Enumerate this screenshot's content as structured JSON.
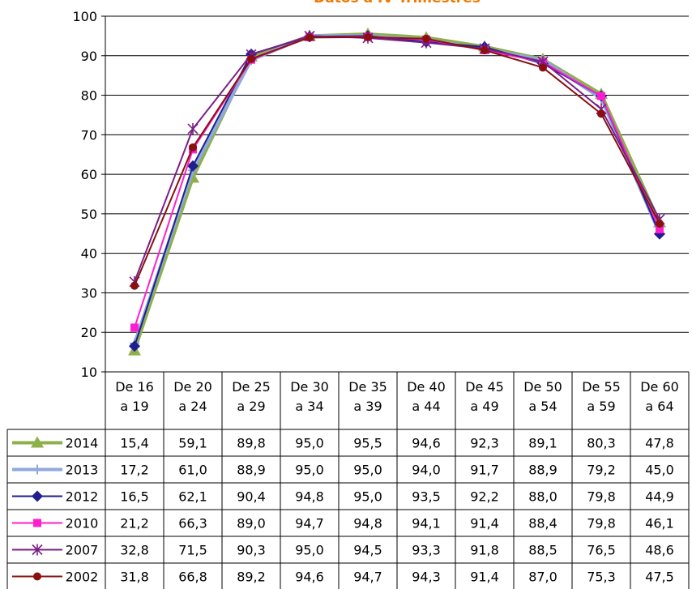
{
  "chart_data": {
    "type": "line",
    "title": "Datos a IV Trimestres",
    "ylim": [
      10,
      100
    ],
    "yticks": [
      "10",
      "20",
      "30",
      "40",
      "50",
      "60",
      "70",
      "80",
      "90",
      "100"
    ],
    "categories": [
      [
        "De 16",
        "a 19"
      ],
      [
        "De 20",
        "a 24"
      ],
      [
        "De 25",
        "a 29"
      ],
      [
        "De 30",
        "a 34"
      ],
      [
        "De 35",
        "a 39"
      ],
      [
        "De 40",
        "a 44"
      ],
      [
        "De 45",
        "a 49"
      ],
      [
        "De 50",
        "a 54"
      ],
      [
        "De 55",
        "a 59"
      ],
      [
        "De 60",
        "a 64"
      ]
    ],
    "grid": true,
    "legend": "data table",
    "series": [
      {
        "name": "2014",
        "color": "#8db04a",
        "marker": "triangle",
        "values": [
          15.4,
          59.1,
          89.8,
          95.0,
          95.5,
          94.6,
          92.3,
          89.1,
          80.3,
          47.8
        ],
        "labels": [
          "15,4",
          "59,1",
          "89,8",
          "95,0",
          "95,5",
          "94,6",
          "92,3",
          "89,1",
          "80,3",
          "47,8"
        ]
      },
      {
        "name": "2013",
        "color": "#8ea9db",
        "marker": "plus",
        "values": [
          17.2,
          61.0,
          88.9,
          95.0,
          95.0,
          94.0,
          91.7,
          88.9,
          79.2,
          45.0
        ],
        "labels": [
          "17,2",
          "61,0",
          "88,9",
          "95,0",
          "95,0",
          "94,0",
          "91,7",
          "88,9",
          "79,2",
          "45,0"
        ]
      },
      {
        "name": "2012",
        "color": "#1f1f8f",
        "marker": "diamond",
        "values": [
          16.5,
          62.1,
          90.4,
          94.8,
          95.0,
          93.5,
          92.2,
          88.0,
          79.8,
          44.9
        ],
        "labels": [
          "16,5",
          "62,1",
          "90,4",
          "94,8",
          "95,0",
          "93,5",
          "92,2",
          "88,0",
          "79,8",
          "44,9"
        ]
      },
      {
        "name": "2010",
        "color": "#ff1ecf",
        "marker": "square",
        "values": [
          21.2,
          66.3,
          89.0,
          94.7,
          94.8,
          94.1,
          91.4,
          88.4,
          79.8,
          46.1
        ],
        "labels": [
          "21,2",
          "66,3",
          "89,0",
          "94,7",
          "94,8",
          "94,1",
          "91,4",
          "88,4",
          "79,8",
          "46,1"
        ]
      },
      {
        "name": "2007",
        "color": "#7a1f85",
        "marker": "star",
        "values": [
          32.8,
          71.5,
          90.3,
          95.0,
          94.5,
          93.3,
          91.8,
          88.5,
          76.5,
          48.6
        ],
        "labels": [
          "32,8",
          "71,5",
          "90,3",
          "95,0",
          "94,5",
          "93,3",
          "91,8",
          "88,5",
          "76,5",
          "48,6"
        ]
      },
      {
        "name": "2002",
        "color": "#8a1010",
        "marker": "circle",
        "values": [
          31.8,
          66.8,
          89.2,
          94.6,
          94.7,
          94.3,
          91.4,
          87.0,
          75.3,
          47.5
        ],
        "labels": [
          "31,8",
          "66,8",
          "89,2",
          "94,6",
          "94,7",
          "94,3",
          "91,4",
          "87,0",
          "75,3",
          "47,5"
        ]
      }
    ]
  }
}
